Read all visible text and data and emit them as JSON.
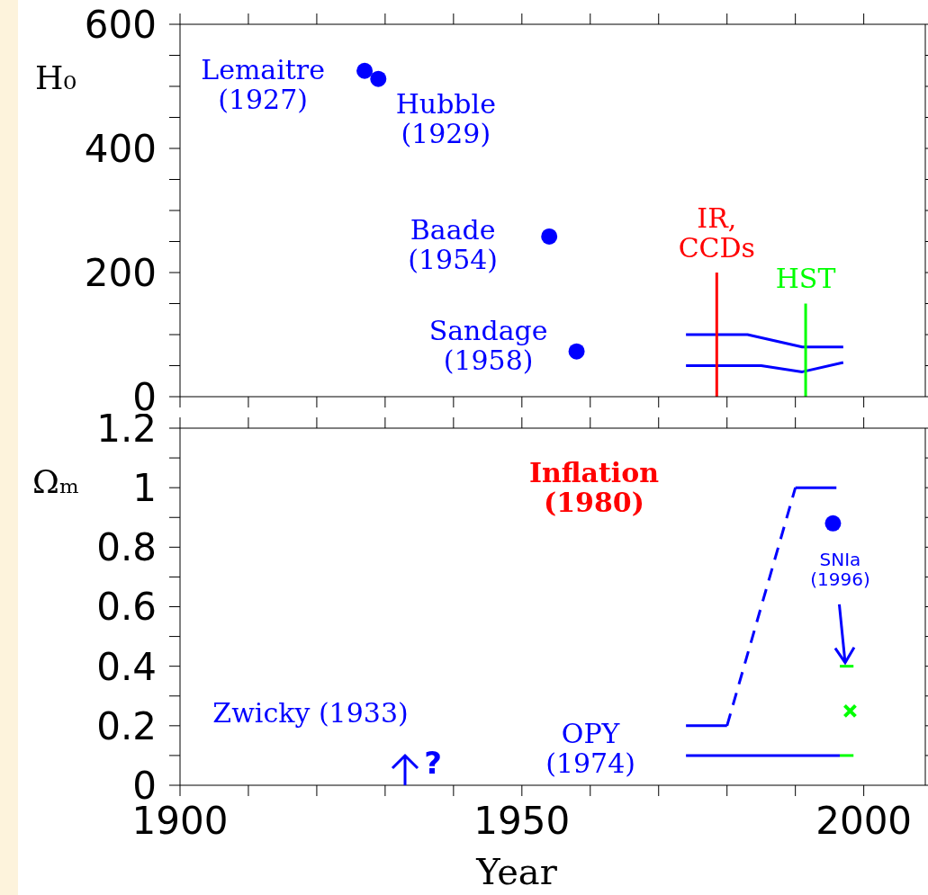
{
  "chart_data": [
    {
      "type": "scatter",
      "ylabel": "H₀",
      "xlim": [
        1900,
        2009
      ],
      "ylim": [
        0,
        600
      ],
      "xticks": [
        {
          "value": 1900,
          "label": null
        },
        {
          "value": 1910,
          "label": null
        },
        {
          "value": 1920,
          "label": null
        },
        {
          "value": 1930,
          "label": null
        },
        {
          "value": 1940,
          "label": null
        },
        {
          "value": 1950,
          "label": null
        },
        {
          "value": 1960,
          "label": null
        },
        {
          "value": 1970,
          "label": null
        },
        {
          "value": 1980,
          "label": null
        },
        {
          "value": 1990,
          "label": null
        },
        {
          "value": 2000,
          "label": null
        }
      ],
      "yticks": [
        0,
        {
          "value": 50,
          "label": null
        },
        {
          "value": 100,
          "label": null
        },
        {
          "value": 150,
          "label": null
        },
        200,
        {
          "value": 250,
          "label": null
        },
        {
          "value": 300,
          "label": null
        },
        {
          "value": 350,
          "label": null
        },
        400,
        {
          "value": 450,
          "label": null
        },
        {
          "value": 500,
          "label": null
        },
        {
          "value": 550,
          "label": null
        },
        600
      ],
      "tick_labels": "y",
      "grid": false,
      "legend": false,
      "series": [
        {
          "marker": "circle",
          "color": "#0000ff",
          "x": [
            1927,
            1929,
            1954,
            1958
          ],
          "values": [
            525,
            512,
            258,
            73
          ]
        },
        {
          "type": "line",
          "color": "#0000ff",
          "x": [
            1974,
            1983,
            1991,
            1997
          ],
          "values": [
            100,
            100,
            80,
            80
          ]
        },
        {
          "type": "line",
          "color": "#0000ff",
          "x": [
            1974,
            1985,
            1991,
            1997
          ],
          "values": [
            50,
            50,
            40,
            55
          ]
        },
        {
          "type": "line",
          "name": "IR,\nCCDs",
          "color": "#ff0000",
          "x": [
            1978.5,
            1978.5
          ],
          "values": [
            0,
            200
          ]
        },
        {
          "type": "line",
          "name": "HST",
          "color": "#00ff00",
          "x": [
            1991.5,
            1991.5
          ],
          "values": [
            0,
            150
          ]
        }
      ],
      "annotations": [
        {
          "text": "Lemaitre\n(1927)",
          "x": 1927,
          "y": 525
        },
        {
          "text": "Hubble\n(1929)",
          "x": 1929,
          "y": 512
        },
        {
          "text": "Baade\n(1954)",
          "x": 1954,
          "y": 258
        },
        {
          "text": "Sandage\n(1958)",
          "x": 1958,
          "y": 73
        }
      ]
    },
    {
      "type": "line",
      "xlabel": "Year",
      "ylabel": "Ωₘ",
      "xlim": [
        1900,
        2009
      ],
      "ylim": [
        0,
        1.2
      ],
      "xticks": [
        1900,
        {
          "value": 1910,
          "label": null
        },
        {
          "value": 1920,
          "label": null
        },
        {
          "value": 1930,
          "label": null
        },
        {
          "value": 1940,
          "label": null
        },
        1950,
        {
          "value": 1960,
          "label": null
        },
        {
          "value": 1970,
          "label": null
        },
        {
          "value": 1980,
          "label": null
        },
        {
          "value": 1990,
          "label": null
        },
        2000
      ],
      "yticks": [
        0,
        {
          "value": 0.1,
          "label": null
        },
        0.2,
        {
          "value": 0.3,
          "label": null
        },
        0.4,
        {
          "value": 0.5,
          "label": null
        },
        0.6,
        {
          "value": 0.7,
          "label": null
        },
        0.8,
        {
          "value": 0.9,
          "label": null
        },
        1,
        {
          "value": 1.1,
          "label": null
        },
        1.2
      ],
      "grid": false,
      "legend": false,
      "series": [
        {
          "line_style": "solid",
          "color": "#0000ff",
          "x": [
            1974,
            1996.5
          ],
          "values": [
            0.1,
            0.1
          ]
        },
        {
          "line_style": "solid",
          "color": "#0000ff",
          "x": [
            1974,
            1980
          ],
          "values": [
            0.2,
            0.2
          ]
        },
        {
          "line_style": "dashed",
          "color": "#0000ff",
          "x": [
            1980,
            1990
          ],
          "values": [
            0.2,
            1.0
          ]
        },
        {
          "line_style": "solid",
          "color": "#0000ff",
          "x": [
            1990,
            1996
          ],
          "values": [
            1.0,
            1.0
          ]
        },
        {
          "type": "scatter",
          "marker": "circle",
          "color": "#0000ff",
          "x": [
            1995.5
          ],
          "values": [
            0.88
          ]
        },
        {
          "line_style": "solid",
          "color": "#00ff00",
          "x": [
            1996.5,
            1998.5
          ],
          "values": [
            0.4,
            0.4
          ]
        },
        {
          "line_style": "solid",
          "color": "#00ff00",
          "x": [
            1996.5,
            1998.5
          ],
          "values": [
            0.1,
            0.1
          ]
        },
        {
          "type": "scatter",
          "marker": "cross",
          "color": "#00ff00",
          "x": [
            1998
          ],
          "values": [
            0.25
          ]
        }
      ],
      "annotations": [
        "Inflation\n(1980)",
        "Zwicky (1933)",
        "?",
        {
          "text": "OPY\n(1974)",
          "x": 1974,
          "y": 0.1
        },
        {
          "text": "SNIa\n(1996)",
          "x": 1995.5,
          "y": 0.88
        }
      ]
    }
  ]
}
